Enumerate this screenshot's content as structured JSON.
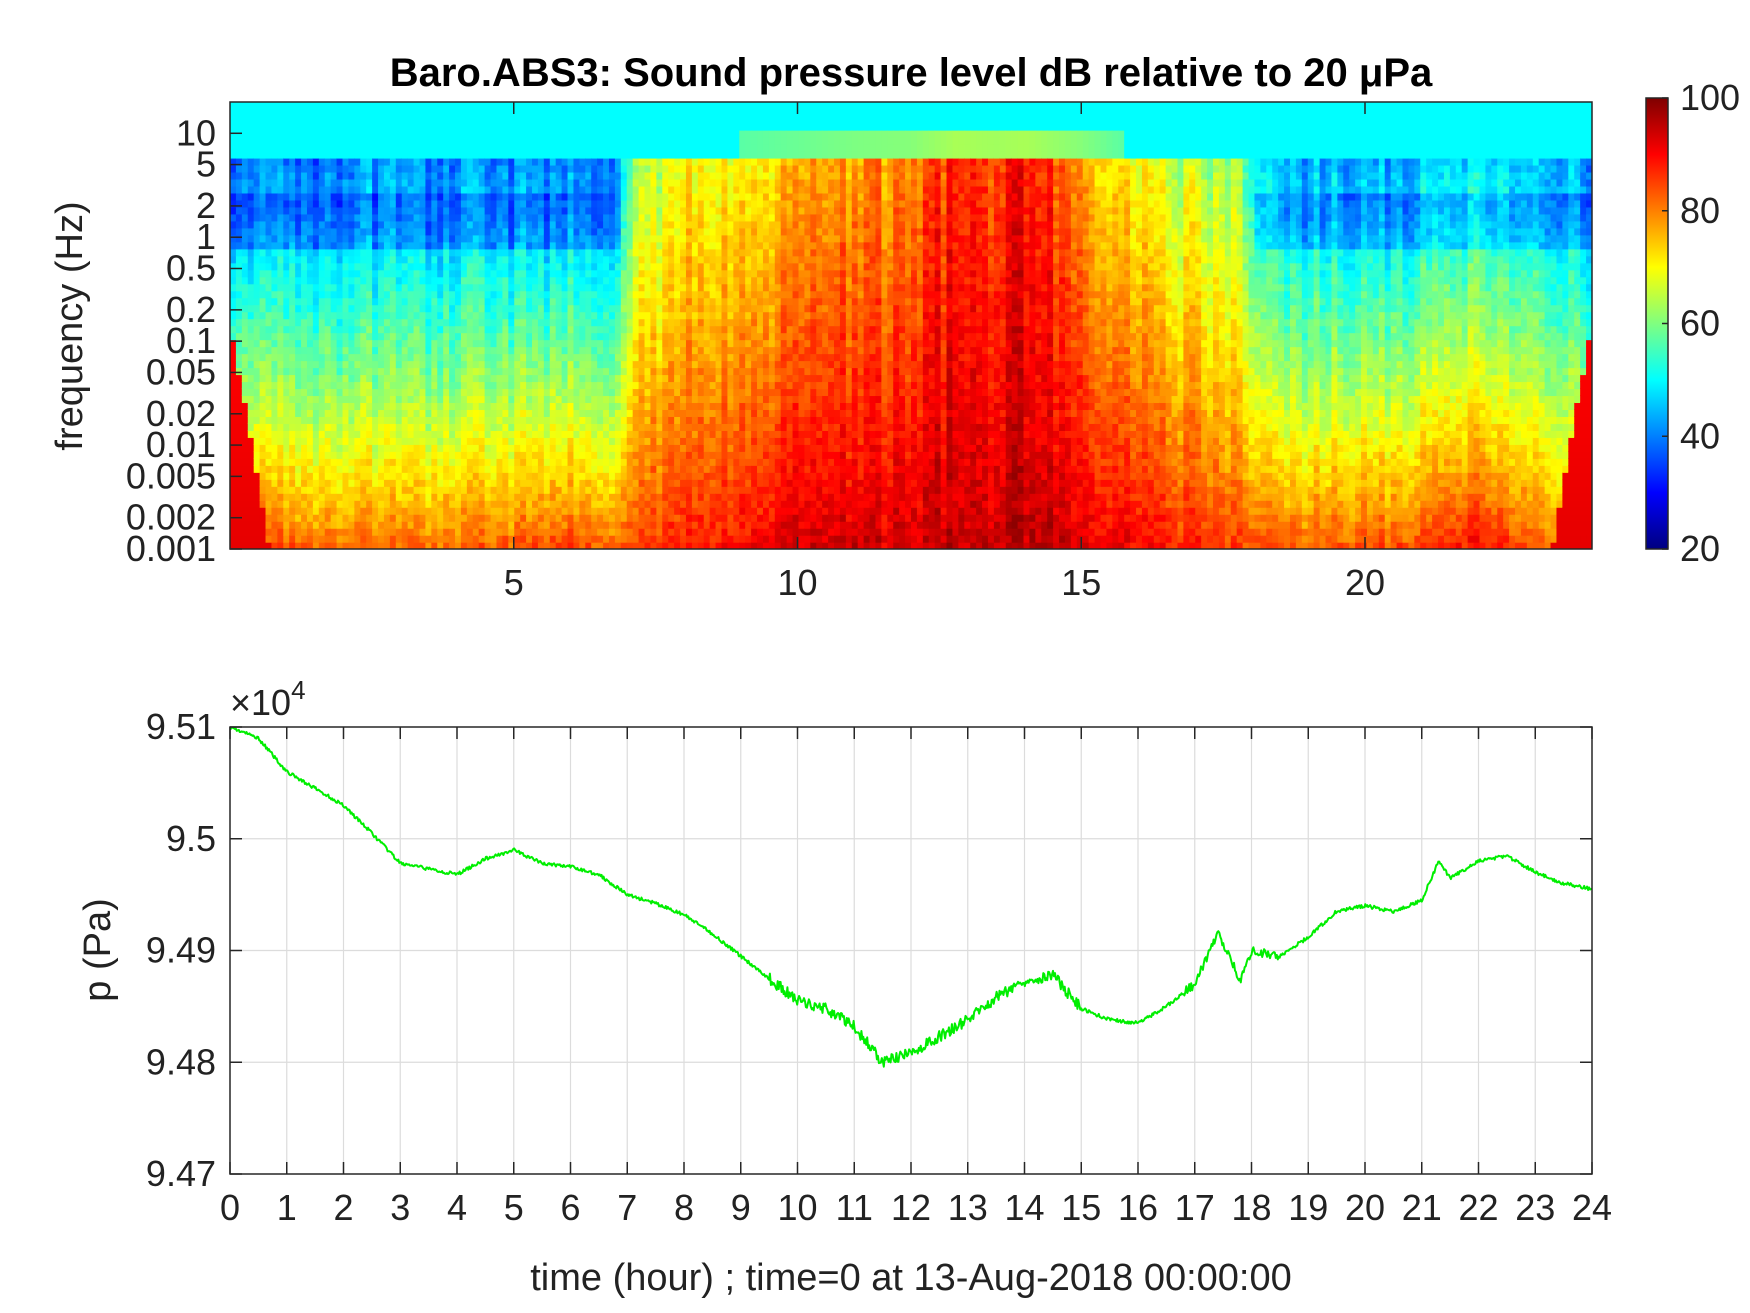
{
  "chart_data": [
    {
      "type": "heatmap",
      "title": "Baro.ABS3: Sound pressure level dB relative to 20 μPa",
      "ylabel": "frequency (Hz)",
      "xlabel": "",
      "y_scale": "log",
      "xlim": [
        0,
        24
      ],
      "ylim": [
        0.001,
        20
      ],
      "x_ticks": [
        5,
        10,
        15,
        20
      ],
      "y_ticks": [
        0.001,
        0.002,
        0.005,
        0.01,
        0.02,
        0.05,
        0.1,
        0.2,
        0.5,
        1,
        2,
        5,
        10
      ],
      "y_tick_labels": [
        "0.001",
        "0.002",
        "0.005",
        "0.01",
        "0.02",
        "0.05",
        "0.1",
        "0.2",
        "0.5",
        "1",
        "2",
        "5",
        "10"
      ],
      "colorbar": {
        "colormap": "jet",
        "range": [
          20,
          100
        ],
        "ticks": [
          20,
          40,
          60,
          80,
          100
        ],
        "tick_labels": [
          "20",
          "40",
          "60",
          "80",
          "100"
        ]
      },
      "intensity_profile": {
        "x": [
          0,
          1,
          2,
          3,
          4,
          5,
          6,
          6.8,
          7.2,
          8,
          9,
          10,
          11,
          12,
          12.8,
          13.5,
          14,
          15,
          15.6,
          16,
          17,
          17.7,
          18.2,
          19,
          20,
          21,
          22,
          23,
          24
        ],
        "upper_dB": [
          40,
          40,
          40,
          40,
          40,
          40,
          40,
          42,
          66,
          68,
          70,
          74,
          78,
          80,
          88,
          86,
          88,
          80,
          72,
          68,
          64,
          64,
          45,
          44,
          43,
          44,
          46,
          44,
          42
        ],
        "lower_dB": [
          88,
          84,
          83,
          82,
          83,
          84,
          86,
          84,
          86,
          88,
          90,
          93,
          94,
          94,
          95,
          95,
          95,
          94,
          92,
          90,
          88,
          86,
          84,
          84,
          85,
          86,
          90,
          84,
          80
        ]
      }
    },
    {
      "type": "line",
      "title": "",
      "xlabel": "time (hour) ; time=0 at 13-Aug-2018 00:00:00",
      "ylabel": "p (Pa)",
      "xlim": [
        0,
        24
      ],
      "ylim": [
        94700,
        95100
      ],
      "x_ticks": [
        0,
        1,
        2,
        3,
        4,
        5,
        6,
        7,
        8,
        9,
        10,
        11,
        12,
        13,
        14,
        15,
        16,
        17,
        18,
        19,
        20,
        21,
        22,
        23,
        24
      ],
      "x_tick_labels": [
        "0",
        "1",
        "2",
        "3",
        "4",
        "5",
        "6",
        "7",
        "8",
        "9",
        "10",
        "11",
        "12",
        "13",
        "14",
        "15",
        "16",
        "17",
        "18",
        "19",
        "20",
        "21",
        "22",
        "23",
        "24"
      ],
      "y_ticks": [
        94700,
        94800,
        94900,
        95000,
        95100
      ],
      "y_tick_labels": [
        "9.47",
        "9.48",
        "9.49",
        "9.5",
        "9.51"
      ],
      "y_exponent_label": "×10",
      "y_exponent_power": "4",
      "grid": true,
      "line_color": "#00ee00",
      "series": [
        {
          "x": [
            0,
            0.5,
            1,
            1.5,
            2,
            2.5,
            3,
            3.5,
            4,
            4.5,
            5,
            5.5,
            6,
            6.5,
            7,
            7.5,
            8,
            8.5,
            9,
            9.5,
            10,
            10.5,
            11,
            11.5,
            12,
            12.5,
            13,
            13.5,
            14,
            14.5,
            15,
            15.5,
            16,
            16.5,
            17,
            17.4,
            17.6,
            17.8,
            18,
            18.5,
            19,
            19.5,
            20,
            20.5,
            21,
            21.3,
            21.5,
            22,
            22.5,
            23,
            23.5,
            24
          ],
          "y": [
            95100,
            95090,
            95060,
            95045,
            95030,
            95005,
            94978,
            94973,
            94968,
            94982,
            94990,
            94978,
            94975,
            94968,
            94950,
            94942,
            94932,
            94915,
            94895,
            94875,
            94855,
            94848,
            94832,
            94800,
            94808,
            94823,
            94838,
            94858,
            94873,
            94878,
            94848,
            94838,
            94835,
            94850,
            94870,
            94915,
            94898,
            94872,
            94900,
            94895,
            94912,
            94935,
            94940,
            94935,
            94945,
            94980,
            94965,
            94980,
            94985,
            94970,
            94960,
            94955
          ]
        }
      ]
    }
  ]
}
